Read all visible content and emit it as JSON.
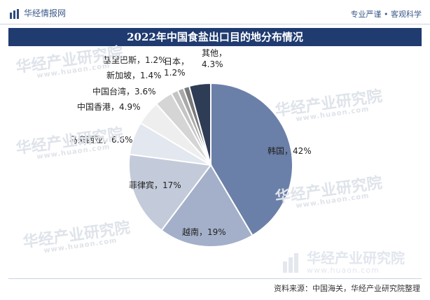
{
  "header": {
    "brand": "华经情报网",
    "slogan": "专业严谨 • 客观科学",
    "brand_color": "#2d4a7c"
  },
  "watermark": {
    "cn": "华经产业研究院",
    "url": "www.huaon.com"
  },
  "source": "资料来源：中国海关，华经产业研究院整理",
  "chart_data": {
    "type": "pie",
    "title": "2022年中国食盐出口目的地分布情况",
    "unit": "%",
    "start_angle_deg": 0,
    "direction": "clockwise",
    "slices": [
      {
        "name": "韩国",
        "value": 42,
        "label": "韩国，42%",
        "color": "#6b80a8",
        "label_inside": true
      },
      {
        "name": "越南",
        "value": 19,
        "label": "越南，19%",
        "color": "#a4b0c9",
        "label_inside": true
      },
      {
        "name": "菲律宾",
        "value": 17,
        "label": "菲律宾，17%",
        "color": "#c3cad9",
        "label_inside": true
      },
      {
        "name": "马来西亚",
        "value": 6.6,
        "label": "马来西亚，6.6%",
        "color": "#e3e7ef",
        "label_inside": false
      },
      {
        "name": "中国香港",
        "value": 4.9,
        "label": "中国香港，4.9%",
        "color": "#eeeeee",
        "label_inside": false
      },
      {
        "name": "中国台湾",
        "value": 3.6,
        "label": "中国台湾，3.6%",
        "color": "#d5d5d5",
        "label_inside": false
      },
      {
        "name": "新加坡",
        "value": 1.4,
        "label": "新加坡，1.4%",
        "color": "#c4c4c4",
        "label_inside": false
      },
      {
        "name": "基里巴斯",
        "value": 1.2,
        "label": "基里巴斯，1.2%",
        "color": "#a9a9a9",
        "label_inside": false
      },
      {
        "name": "日本",
        "value": 1.2,
        "label": "日本，1.2%",
        "color": "#7a7a7a",
        "label_inside": false
      },
      {
        "name": "其他",
        "value": 4.3,
        "label": "其他，4.3%",
        "color": "#2f3c55",
        "label_inside": false
      }
    ],
    "outside_labels": {
      "马来西亚": [
        "马来西亚，6.6%"
      ],
      "中国香港": [
        "中国香港，4.9%"
      ],
      "中国台湾": [
        "中国台湾，3.6%"
      ],
      "新加坡": [
        "新加坡，1.4%"
      ],
      "基里巴斯": [
        "基里巴斯，1.2%"
      ],
      "日本": [
        "日本，",
        "1.2%"
      ],
      "其他": [
        "其他，",
        "4.3%"
      ]
    }
  }
}
